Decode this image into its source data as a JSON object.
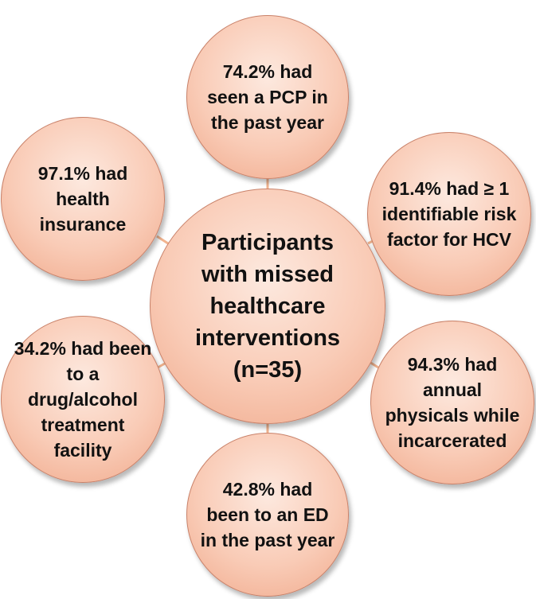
{
  "diagram": {
    "center": {
      "label": "Participants with missed healthcare interventions (n=35)"
    },
    "nodes": [
      {
        "id": "pcp",
        "label": "74.2% had seen a PCP in the past year"
      },
      {
        "id": "insurance",
        "label": "97.1% had health insurance"
      },
      {
        "id": "hcv-risk",
        "label": "91.4% had ≥ 1 identifiable risk factor for HCV"
      },
      {
        "id": "treatment",
        "label": "34.2% had been to a drug/alcohol treatment facility"
      },
      {
        "id": "physicals",
        "label": "94.3% had annual physicals while incarcerated"
      },
      {
        "id": "ed",
        "label": "42.8% had been to an ED in the past year"
      }
    ],
    "colors": {
      "circle_fill": "#f9cbb6",
      "circle_border": "#c9826a",
      "connector": "#f2b48f",
      "text": "#111111"
    }
  }
}
